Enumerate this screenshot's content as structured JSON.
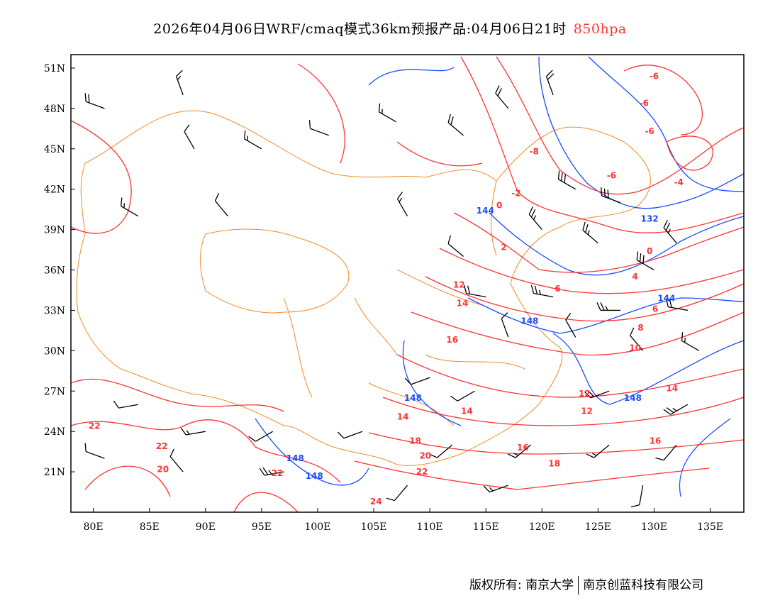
{
  "title": {
    "main": "2026年04月06日WRF/cmaq模式36km预报产品:04月06日21时",
    "level": "850hpa"
  },
  "colors": {
    "temperature": "#ff3333",
    "height": "#1a4dff",
    "border": "#f08a2a",
    "wind": "#000000"
  },
  "map": {
    "lon_range": [
      78,
      138
    ],
    "lat_range": [
      18,
      52
    ],
    "lon_ticks": [
      "80E",
      "85E",
      "90E",
      "95E",
      "100E",
      "105E",
      "110E",
      "115E",
      "120E",
      "125E",
      "130E",
      "135E"
    ],
    "lon_tick_values": [
      80,
      85,
      90,
      95,
      100,
      105,
      110,
      115,
      120,
      125,
      130,
      135
    ],
    "lat_ticks": [
      "51N",
      "48N",
      "45N",
      "42N",
      "39N",
      "36N",
      "33N",
      "30N",
      "27N",
      "24N",
      "21N"
    ],
    "lat_tick_values": [
      51,
      48,
      45,
      42,
      39,
      36,
      33,
      30,
      27,
      24,
      21
    ],
    "temperature_labels": [
      {
        "t": "-6",
        "lon": 130.0,
        "lat": 50.4
      },
      {
        "t": "-6",
        "lon": 129.1,
        "lat": 48.4
      },
      {
        "t": "-6",
        "lon": 129.6,
        "lat": 46.3
      },
      {
        "t": "-6",
        "lon": 126.2,
        "lat": 43.0
      },
      {
        "t": "-8",
        "lon": 119.3,
        "lat": 44.8
      },
      {
        "t": "-4",
        "lon": 132.2,
        "lat": 42.5
      },
      {
        "t": "-2",
        "lon": 117.7,
        "lat": 41.7
      },
      {
        "t": "0",
        "lon": 116.2,
        "lat": 40.8
      },
      {
        "t": "2",
        "lon": 116.6,
        "lat": 37.7
      },
      {
        "t": "0",
        "lon": 129.6,
        "lat": 37.4
      },
      {
        "t": "4",
        "lon": 128.3,
        "lat": 35.5
      },
      {
        "t": "6",
        "lon": 121.4,
        "lat": 34.6
      },
      {
        "t": "6",
        "lon": 130.1,
        "lat": 33.1
      },
      {
        "t": "8",
        "lon": 128.8,
        "lat": 31.7
      },
      {
        "t": "10",
        "lon": 128.3,
        "lat": 30.2
      },
      {
        "t": "12",
        "lon": 112.6,
        "lat": 34.9
      },
      {
        "t": "14",
        "lon": 112.9,
        "lat": 34.2
      },
      {
        "t": "16",
        "lon": 112.0,
        "lat": 30.8
      },
      {
        "t": "12",
        "lon": 123.8,
        "lat": 26.8
      },
      {
        "t": "12",
        "lon": 124.0,
        "lat": 25.5
      },
      {
        "t": "14",
        "lon": 131.6,
        "lat": 27.2
      },
      {
        "t": "14",
        "lon": 113.3,
        "lat": 25.5
      },
      {
        "t": "14",
        "lon": 107.6,
        "lat": 25.1
      },
      {
        "t": "16",
        "lon": 118.3,
        "lat": 22.8
      },
      {
        "t": "16",
        "lon": 130.1,
        "lat": 23.3
      },
      {
        "t": "18",
        "lon": 108.7,
        "lat": 23.3
      },
      {
        "t": "18",
        "lon": 121.1,
        "lat": 21.6
      },
      {
        "t": "20",
        "lon": 109.6,
        "lat": 22.2
      },
      {
        "t": "22",
        "lon": 109.3,
        "lat": 21.0
      },
      {
        "t": "22",
        "lon": 80.1,
        "lat": 24.4
      },
      {
        "t": "22",
        "lon": 86.1,
        "lat": 22.9
      },
      {
        "t": "20",
        "lon": 86.2,
        "lat": 21.2
      },
      {
        "t": "22",
        "lon": 96.4,
        "lat": 20.9
      },
      {
        "t": "24",
        "lon": 105.2,
        "lat": 18.8
      }
    ],
    "height_labels": [
      {
        "t": "144",
        "lon": 115.7,
        "lat": 40.4
      },
      {
        "t": "132",
        "lon": 129.6,
        "lat": 39.8
      },
      {
        "t": "148",
        "lon": 118.9,
        "lat": 32.2
      },
      {
        "t": "144",
        "lon": 131.1,
        "lat": 33.9
      },
      {
        "t": "148",
        "lon": 108.5,
        "lat": 26.5
      },
      {
        "t": "148",
        "lon": 128.1,
        "lat": 26.5
      },
      {
        "t": "148",
        "lon": 98.0,
        "lat": 22.0
      },
      {
        "t": "148",
        "lon": 99.7,
        "lat": 20.7
      }
    ],
    "wind_barbs": [
      {
        "lon": 81,
        "lat": 48,
        "dir": 290,
        "spd": 20
      },
      {
        "lon": 88,
        "lat": 49,
        "dir": 340,
        "spd": 15
      },
      {
        "lon": 89,
        "lat": 45,
        "dir": 330,
        "spd": 10
      },
      {
        "lon": 95,
        "lat": 45,
        "dir": 300,
        "spd": 15
      },
      {
        "lon": 101,
        "lat": 46,
        "dir": 290,
        "spd": 10
      },
      {
        "lon": 107,
        "lat": 47,
        "dir": 300,
        "spd": 15
      },
      {
        "lon": 113,
        "lat": 46,
        "dir": 310,
        "spd": 20
      },
      {
        "lon": 117,
        "lat": 48,
        "dir": 320,
        "spd": 20
      },
      {
        "lon": 121,
        "lat": 49,
        "dir": 340,
        "spd": 20
      },
      {
        "lon": 123,
        "lat": 42,
        "dir": 300,
        "spd": 30
      },
      {
        "lon": 127,
        "lat": 41,
        "dir": 290,
        "spd": 30
      },
      {
        "lon": 120,
        "lat": 39,
        "dir": 320,
        "spd": 25
      },
      {
        "lon": 125,
        "lat": 38,
        "dir": 310,
        "spd": 25
      },
      {
        "lon": 130,
        "lat": 36,
        "dir": 300,
        "spd": 30
      },
      {
        "lon": 132,
        "lat": 38,
        "dir": 320,
        "spd": 25
      },
      {
        "lon": 115,
        "lat": 34,
        "dir": 280,
        "spd": 20
      },
      {
        "lon": 121,
        "lat": 34,
        "dir": 280,
        "spd": 25
      },
      {
        "lon": 127,
        "lat": 33,
        "dir": 270,
        "spd": 25
      },
      {
        "lon": 133,
        "lat": 33,
        "dir": 280,
        "spd": 20
      },
      {
        "lon": 117,
        "lat": 31,
        "dir": 340,
        "spd": 10
      },
      {
        "lon": 123,
        "lat": 31,
        "dir": 330,
        "spd": 10
      },
      {
        "lon": 129,
        "lat": 30,
        "dir": 320,
        "spd": 10
      },
      {
        "lon": 134,
        "lat": 30,
        "dir": 300,
        "spd": 15
      },
      {
        "lon": 110,
        "lat": 28,
        "dir": 250,
        "spd": 10
      },
      {
        "lon": 114,
        "lat": 27,
        "dir": 240,
        "spd": 10
      },
      {
        "lon": 126,
        "lat": 27,
        "dir": 250,
        "spd": 20
      },
      {
        "lon": 133,
        "lat": 26,
        "dir": 240,
        "spd": 25
      },
      {
        "lon": 84,
        "lat": 26,
        "dir": 260,
        "spd": 10
      },
      {
        "lon": 90,
        "lat": 24,
        "dir": 260,
        "spd": 15
      },
      {
        "lon": 96,
        "lat": 24,
        "dir": 240,
        "spd": 10
      },
      {
        "lon": 104,
        "lat": 24,
        "dir": 250,
        "spd": 10
      },
      {
        "lon": 112,
        "lat": 23,
        "dir": 230,
        "spd": 10
      },
      {
        "lon": 119,
        "lat": 23,
        "dir": 230,
        "spd": 15
      },
      {
        "lon": 126,
        "lat": 23,
        "dir": 230,
        "spd": 15
      },
      {
        "lon": 132,
        "lat": 23,
        "dir": 220,
        "spd": 10
      },
      {
        "lon": 81,
        "lat": 22,
        "dir": 290,
        "spd": 10
      },
      {
        "lon": 88,
        "lat": 21,
        "dir": 320,
        "spd": 10
      },
      {
        "lon": 97,
        "lat": 21,
        "dir": 260,
        "spd": 25
      },
      {
        "lon": 108,
        "lat": 20,
        "dir": 220,
        "spd": 10
      },
      {
        "lon": 117,
        "lat": 20,
        "dir": 250,
        "spd": 15
      },
      {
        "lon": 129,
        "lat": 20,
        "dir": 190,
        "spd": 10
      },
      {
        "lon": 84,
        "lat": 40,
        "dir": 300,
        "spd": 15
      },
      {
        "lon": 92,
        "lat": 40,
        "dir": 320,
        "spd": 10
      },
      {
        "lon": 108,
        "lat": 40,
        "dir": 330,
        "spd": 15
      },
      {
        "lon": 113,
        "lat": 37,
        "dir": 310,
        "spd": 10
      }
    ]
  },
  "footer": {
    "copyright": "版权所有: 南京大学",
    "company": "南京创蓝科技有限公司"
  }
}
